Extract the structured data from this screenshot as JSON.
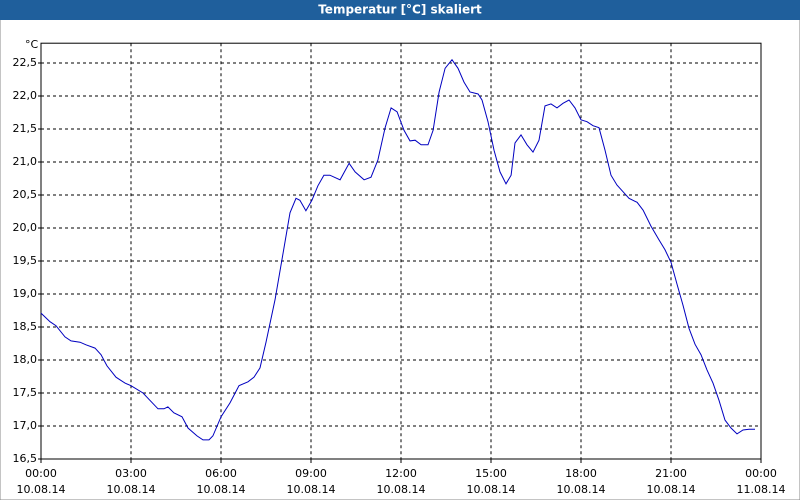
{
  "chart_data": {
    "type": "line",
    "title": "Temperatur [°C] skaliert",
    "y_unit": "°C",
    "x": [
      0,
      0.3,
      0.5,
      0.8,
      1.0,
      1.3,
      1.5,
      1.8,
      2.0,
      2.2,
      2.5,
      2.8,
      3.0,
      3.4,
      3.63,
      3.9,
      4.1,
      4.23,
      4.43,
      4.7,
      4.9,
      5.2,
      5.4,
      5.6,
      5.73,
      6.0,
      6.3,
      6.6,
      6.9,
      7.1,
      7.3,
      7.5,
      7.8,
      8.1,
      8.3,
      8.5,
      8.63,
      8.83,
      9.03,
      9.23,
      9.43,
      9.63,
      9.97,
      10.27,
      10.47,
      10.77,
      11.0,
      11.23,
      11.47,
      11.67,
      11.87,
      12.1,
      12.3,
      12.47,
      12.67,
      12.9,
      13.07,
      13.27,
      13.47,
      13.7,
      13.9,
      14.1,
      14.3,
      14.57,
      14.7,
      14.9,
      15.1,
      15.3,
      15.5,
      15.67,
      15.8,
      16.0,
      16.2,
      16.4,
      16.6,
      16.8,
      17.0,
      17.2,
      17.4,
      17.6,
      17.8,
      18.0,
      18.2,
      18.4,
      18.6,
      18.8,
      19.0,
      19.2,
      19.4,
      19.6,
      19.87,
      20.07,
      20.33,
      20.6,
      20.8,
      21.0,
      21.2,
      21.4,
      21.6,
      21.8,
      22.0,
      22.2,
      22.4,
      22.6,
      22.8,
      23.0,
      23.2,
      23.4,
      23.6,
      23.8
    ],
    "series": [
      {
        "name": "Temperatur",
        "color": "#0000c0",
        "values": [
          18.71,
          18.58,
          18.52,
          18.35,
          18.29,
          18.27,
          18.23,
          18.18,
          18.08,
          17.91,
          17.74,
          17.65,
          17.61,
          17.5,
          17.39,
          17.26,
          17.26,
          17.29,
          17.2,
          17.14,
          16.97,
          16.85,
          16.79,
          16.79,
          16.85,
          17.14,
          17.35,
          17.61,
          17.67,
          17.74,
          17.88,
          18.27,
          18.91,
          19.7,
          20.23,
          20.45,
          20.42,
          20.26,
          20.42,
          20.64,
          20.8,
          20.8,
          20.73,
          20.98,
          20.85,
          20.73,
          20.77,
          21.03,
          21.52,
          21.82,
          21.76,
          21.48,
          21.32,
          21.33,
          21.26,
          21.26,
          21.48,
          22.06,
          22.42,
          22.55,
          22.42,
          22.21,
          22.06,
          22.03,
          21.94,
          21.61,
          21.18,
          20.85,
          20.67,
          20.8,
          21.29,
          21.41,
          21.26,
          21.15,
          21.33,
          21.85,
          21.88,
          21.82,
          21.89,
          21.94,
          21.82,
          21.64,
          21.61,
          21.55,
          21.52,
          21.18,
          20.8,
          20.65,
          20.55,
          20.45,
          20.39,
          20.27,
          20.03,
          19.82,
          19.67,
          19.48,
          19.15,
          18.83,
          18.48,
          18.24,
          18.08,
          17.85,
          17.65,
          17.39,
          17.09,
          16.97,
          16.88,
          16.94,
          16.95,
          16.95
        ]
      }
    ],
    "xlim": [
      0,
      24
    ],
    "xticks": [
      {
        "value": 0,
        "label": "00:00"
      },
      {
        "value": 3,
        "label": "03:00"
      },
      {
        "value": 6,
        "label": "06:00"
      },
      {
        "value": 9,
        "label": "09:00"
      },
      {
        "value": 12,
        "label": "12:00"
      },
      {
        "value": 15,
        "label": "15:00"
      },
      {
        "value": 18,
        "label": "18:00"
      },
      {
        "value": 21,
        "label": "21:00"
      },
      {
        "value": 24,
        "label": "00:00"
      }
    ],
    "xtick_dates": [
      "10.08.14",
      "10.08.14",
      "10.08.14",
      "10.08.14",
      "10.08.14",
      "10.08.14",
      "10.08.14",
      "10.08.14",
      "11.08.14"
    ],
    "ylim": [
      16.5,
      22.8
    ],
    "yticks": [
      {
        "value": 16.5,
        "label": "16,5"
      },
      {
        "value": 17,
        "label": "17,0"
      },
      {
        "value": 17.5,
        "label": "17,5"
      },
      {
        "value": 18,
        "label": "18,0"
      },
      {
        "value": 18.5,
        "label": "18,5"
      },
      {
        "value": 19,
        "label": "19,0"
      },
      {
        "value": 19.5,
        "label": "19,5"
      },
      {
        "value": 20,
        "label": "20,0"
      },
      {
        "value": 20.5,
        "label": "20,5"
      },
      {
        "value": 21,
        "label": "21,0"
      },
      {
        "value": 21.5,
        "label": "21,5"
      },
      {
        "value": 22,
        "label": "22,0"
      },
      {
        "value": 22.5,
        "label": "22,5"
      }
    ],
    "grid": true
  }
}
